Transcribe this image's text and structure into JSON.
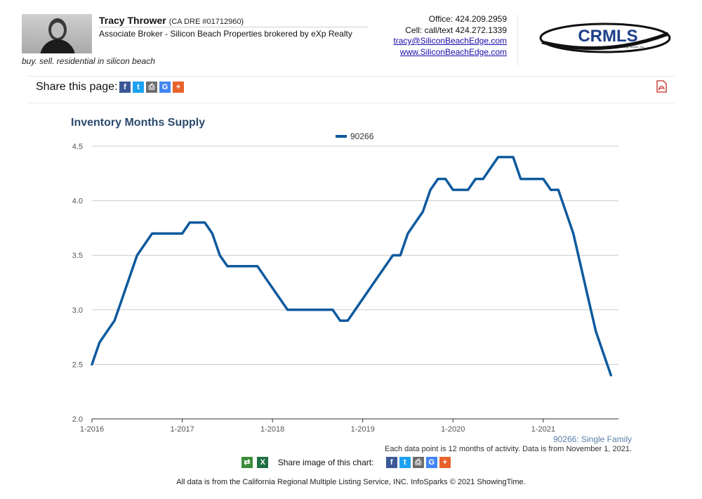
{
  "agent": {
    "name": "Tracy Thrower",
    "dre": "(CA DRE #01712960)",
    "title": "Associate Broker - Silicon Beach Properties brokered by eXp Realty",
    "tagline": "buy. sell. residential in silicon beach"
  },
  "contact": {
    "office": "Office: 424.209.2959",
    "cell": "Cell: call/text 424.272.1339",
    "email": "tracy@SiliconBeachEdge.com",
    "website": "www.SiliconBeachEdge.com"
  },
  "logo": {
    "text": "CRMLS",
    "subtext": "California Regional Multiple Listing Service, Inc."
  },
  "share": {
    "label": "Share this page:"
  },
  "chart_data": {
    "type": "line",
    "title": "Inventory Months Supply",
    "legend_position": "top-center",
    "grid": true,
    "ylim": [
      2.0,
      4.5
    ],
    "y_ticks": [
      "2.0",
      "2.5",
      "3.0",
      "3.5",
      "4.0",
      "4.5"
    ],
    "x_ticks": [
      "1-2016",
      "1-2017",
      "1-2018",
      "1-2019",
      "1-2020",
      "1-2021"
    ],
    "series": [
      {
        "name": "90266",
        "color": "#0e5a9e",
        "x": [
          "2016-01",
          "2016-02",
          "2016-03",
          "2016-04",
          "2016-05",
          "2016-06",
          "2016-07",
          "2016-08",
          "2016-09",
          "2016-10",
          "2016-11",
          "2016-12",
          "2017-01",
          "2017-02",
          "2017-03",
          "2017-04",
          "2017-05",
          "2017-06",
          "2017-07",
          "2017-08",
          "2017-09",
          "2017-10",
          "2017-11",
          "2017-12",
          "2018-01",
          "2018-02",
          "2018-03",
          "2018-04",
          "2018-05",
          "2018-06",
          "2018-07",
          "2018-08",
          "2018-09",
          "2018-10",
          "2018-11",
          "2018-12",
          "2019-01",
          "2019-02",
          "2019-03",
          "2019-04",
          "2019-05",
          "2019-06",
          "2019-07",
          "2019-08",
          "2019-09",
          "2019-10",
          "2019-11",
          "2019-12",
          "2020-01",
          "2020-02",
          "2020-03",
          "2020-04",
          "2020-05",
          "2020-06",
          "2020-07",
          "2020-08",
          "2020-09",
          "2020-10",
          "2020-11",
          "2020-12",
          "2021-01",
          "2021-02",
          "2021-03",
          "2021-04",
          "2021-05",
          "2021-06",
          "2021-07",
          "2021-08",
          "2021-09",
          "2021-10"
        ],
        "values": [
          2.5,
          2.7,
          2.8,
          2.9,
          3.1,
          3.3,
          3.5,
          3.6,
          3.7,
          3.7,
          3.7,
          3.7,
          3.7,
          3.8,
          3.8,
          3.8,
          3.7,
          3.5,
          3.4,
          3.4,
          3.4,
          3.4,
          3.4,
          3.3,
          3.2,
          3.1,
          3.0,
          3.0,
          3.0,
          3.0,
          3.0,
          3.0,
          3.0,
          2.9,
          2.9,
          3.0,
          3.1,
          3.2,
          3.3,
          3.4,
          3.5,
          3.5,
          3.7,
          3.8,
          3.9,
          4.1,
          4.2,
          4.2,
          4.1,
          4.1,
          4.1,
          4.2,
          4.2,
          4.3,
          4.4,
          4.4,
          4.4,
          4.2,
          4.2,
          4.2,
          4.2,
          4.1,
          4.1,
          3.9,
          3.7,
          3.4,
          3.1,
          2.8,
          2.6,
          2.4
        ]
      }
    ]
  },
  "series_label": "90266: Single Family",
  "note": "Each data point is 12 months of activity. Data is from November 1, 2021.",
  "share_image_label": "Share image of this chart:",
  "footer": "All data is from the California Regional Multiple Listing Service, INC. InfoSparks © 2021 ShowingTime."
}
